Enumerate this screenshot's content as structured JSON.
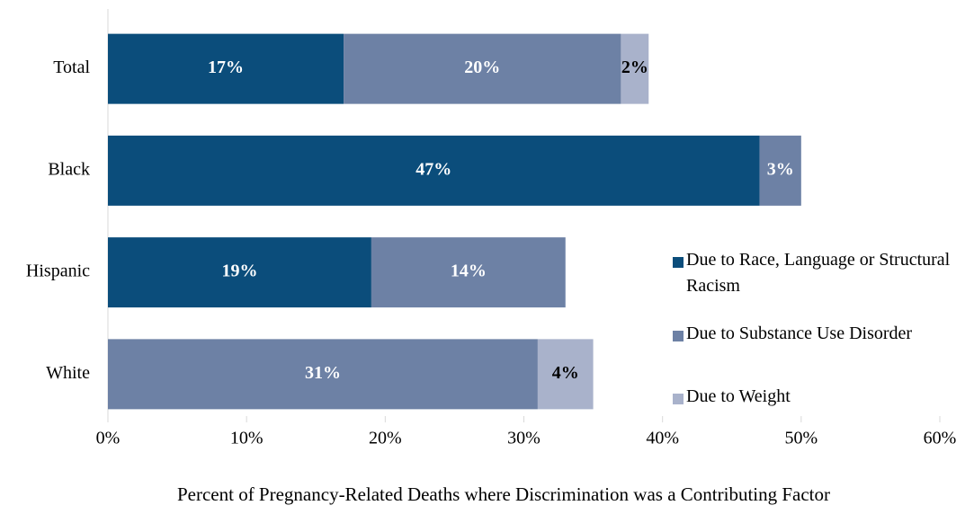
{
  "chart_data": {
    "type": "stacked_barh",
    "xlabel": "Percent of Pregnancy-Related Deaths where Discrimination was a Contributing Factor",
    "categories": [
      "Total",
      "Black",
      "Hispanic",
      "White"
    ],
    "series": [
      {
        "name": "Due to Race, Language or Structural Racism",
        "color": "#0b4d7b",
        "label_color": "#ffffff",
        "values": [
          17,
          47,
          19,
          null
        ],
        "value_labels": [
          "17%",
          "47%",
          "19%",
          null
        ]
      },
      {
        "name": "Due to Substance Use Disorder",
        "color": "#6d81a5",
        "label_color": "#ffffff",
        "values": [
          20,
          3,
          14,
          31
        ],
        "value_labels": [
          "20%",
          "3%",
          "14%",
          "31%"
        ]
      },
      {
        "name": "Due to Weight",
        "color": "#a9b2cb",
        "label_color": "#000000",
        "values": [
          2,
          null,
          null,
          4
        ],
        "value_labels": [
          "2%",
          null,
          null,
          "4%"
        ]
      }
    ],
    "xlim": [
      0,
      60
    ],
    "xticks": [
      {
        "value": 0,
        "label": "0%"
      },
      {
        "value": 10,
        "label": "10%"
      },
      {
        "value": 20,
        "label": "20%"
      },
      {
        "value": 30,
        "label": "30%"
      },
      {
        "value": 40,
        "label": "40%"
      },
      {
        "value": 50,
        "label": "50%"
      },
      {
        "value": 60,
        "label": "60%"
      }
    ],
    "legend": "right"
  }
}
